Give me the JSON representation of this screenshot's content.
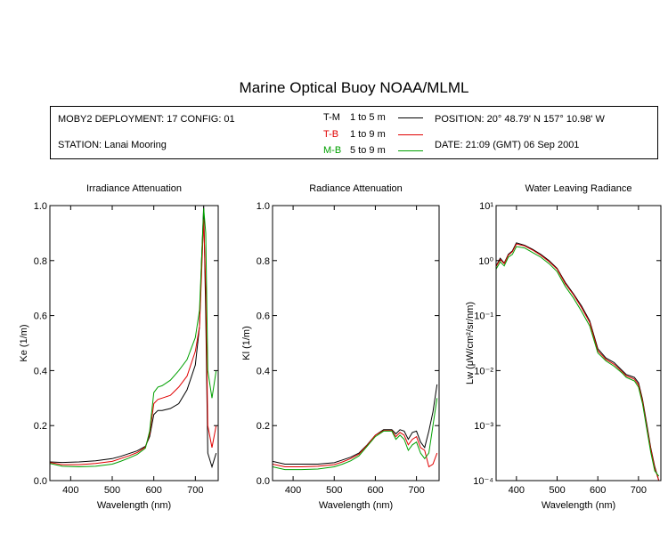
{
  "title": "Marine Optical Buoy NOAA/MLML",
  "info": {
    "deployment": "MOBY2 DEPLOYMENT: 17 CONFIG: 01",
    "station": "STATION: Lanai Mooring",
    "position": "POSITION: 20° 48.79' N   157° 10.98' W",
    "date": "DATE: 21:09 (GMT) 06 Sep 2001",
    "legend": [
      {
        "code": "T-M",
        "range": "1 to 5  m",
        "color": "#000000"
      },
      {
        "code": "T-B",
        "range": "1 to 9  m",
        "color": "#e00000"
      },
      {
        "code": "M-B",
        "range": "5 to 9  m",
        "color": "#00a000"
      }
    ]
  },
  "colors": {
    "tm": "#000000",
    "tb": "#e00000",
    "mb": "#00a000"
  },
  "chart_data": [
    {
      "type": "line",
      "title": "Irradiance Attenuation",
      "xlabel": "Wavelength (nm)",
      "ylabel": "Ke  (1/m)",
      "xlim": [
        350,
        755
      ],
      "ylim": [
        0,
        1
      ],
      "xticks": [
        400,
        500,
        600,
        700
      ],
      "yticks": [
        0.0,
        0.2,
        0.4,
        0.6,
        0.8,
        1.0
      ],
      "ytick_labels": [
        "0.0",
        "0.2",
        "0.4",
        "0.6",
        "0.8",
        "1.0"
      ],
      "series": [
        {
          "name": "T-M",
          "color": "#000000",
          "x": [
            350,
            380,
            420,
            460,
            500,
            520,
            540,
            560,
            580,
            590,
            600,
            610,
            620,
            640,
            660,
            680,
            700,
            710,
            715,
            720,
            725,
            730,
            740,
            750
          ],
          "y": [
            0.068,
            0.066,
            0.068,
            0.072,
            0.08,
            0.088,
            0.098,
            0.108,
            0.125,
            0.16,
            0.24,
            0.255,
            0.255,
            0.262,
            0.28,
            0.33,
            0.42,
            0.56,
            0.8,
            1.0,
            0.6,
            0.1,
            0.05,
            0.1
          ]
        },
        {
          "name": "T-B",
          "color": "#e00000",
          "x": [
            350,
            380,
            420,
            460,
            500,
            520,
            540,
            560,
            580,
            590,
            600,
            610,
            620,
            640,
            660,
            680,
            700,
            710,
            715,
            720,
            725,
            730,
            740,
            750
          ],
          "y": [
            0.066,
            0.058,
            0.058,
            0.062,
            0.07,
            0.08,
            0.09,
            0.102,
            0.122,
            0.17,
            0.28,
            0.295,
            0.3,
            0.31,
            0.34,
            0.38,
            0.47,
            0.56,
            0.75,
            0.95,
            0.7,
            0.2,
            0.12,
            0.2
          ]
        },
        {
          "name": "M-B",
          "color": "#00a000",
          "x": [
            350,
            380,
            420,
            460,
            500,
            520,
            540,
            560,
            580,
            590,
            600,
            610,
            620,
            640,
            660,
            680,
            700,
            710,
            715,
            720,
            725,
            730,
            740,
            750
          ],
          "y": [
            0.062,
            0.052,
            0.05,
            0.052,
            0.06,
            0.07,
            0.082,
            0.095,
            0.118,
            0.18,
            0.32,
            0.34,
            0.345,
            0.365,
            0.4,
            0.44,
            0.52,
            0.62,
            0.8,
            0.99,
            0.9,
            0.4,
            0.3,
            0.4
          ]
        }
      ]
    },
    {
      "type": "line",
      "title": "Radiance Attenuation",
      "xlabel": "Wavelength (nm)",
      "ylabel": "Kl  (1/m)",
      "xlim": [
        350,
        755
      ],
      "ylim": [
        0,
        1
      ],
      "xticks": [
        400,
        500,
        600,
        700
      ],
      "yticks": [
        0.0,
        0.2,
        0.4,
        0.6,
        0.8,
        1.0
      ],
      "ytick_labels": [
        "0.0",
        "0.2",
        "0.4",
        "0.6",
        "0.8",
        "1.0"
      ],
      "series": [
        {
          "name": "T-M",
          "color": "#000000",
          "x": [
            350,
            380,
            420,
            460,
            500,
            520,
            540,
            560,
            580,
            600,
            620,
            640,
            650,
            660,
            670,
            680,
            690,
            700,
            710,
            720,
            730,
            740,
            750
          ],
          "y": [
            0.07,
            0.06,
            0.06,
            0.06,
            0.065,
            0.075,
            0.085,
            0.1,
            0.13,
            0.165,
            0.185,
            0.185,
            0.17,
            0.185,
            0.18,
            0.15,
            0.175,
            0.18,
            0.14,
            0.12,
            0.18,
            0.25,
            0.35
          ]
        },
        {
          "name": "T-B",
          "color": "#e00000",
          "x": [
            350,
            380,
            420,
            460,
            500,
            520,
            540,
            560,
            580,
            600,
            620,
            640,
            650,
            660,
            670,
            680,
            690,
            700,
            710,
            720,
            730,
            740,
            750
          ],
          "y": [
            0.06,
            0.05,
            0.05,
            0.052,
            0.058,
            0.068,
            0.08,
            0.096,
            0.128,
            0.165,
            0.182,
            0.182,
            0.16,
            0.175,
            0.165,
            0.13,
            0.15,
            0.16,
            0.12,
            0.11,
            0.05,
            0.06,
            0.1
          ]
        },
        {
          "name": "M-B",
          "color": "#00a000",
          "x": [
            350,
            380,
            420,
            460,
            500,
            520,
            540,
            560,
            580,
            600,
            620,
            640,
            650,
            660,
            670,
            680,
            690,
            700,
            710,
            720,
            730,
            740,
            750
          ],
          "y": [
            0.05,
            0.04,
            0.04,
            0.042,
            0.05,
            0.06,
            0.072,
            0.09,
            0.125,
            0.16,
            0.18,
            0.18,
            0.15,
            0.165,
            0.15,
            0.11,
            0.13,
            0.14,
            0.1,
            0.08,
            0.1,
            0.2,
            0.3
          ]
        }
      ]
    },
    {
      "type": "line",
      "title": "Water Leaving Radiance",
      "xlabel": "Wavelength (nm)",
      "ylabel": "Lw  (μW/cm²/sr/nm)",
      "xlim": [
        350,
        755
      ],
      "ylim": [
        0.0001,
        10
      ],
      "yscale": "log",
      "xticks": [
        400,
        500,
        600,
        700
      ],
      "yticks": [
        0.0001,
        0.001,
        0.01,
        0.1,
        1,
        10
      ],
      "ytick_labels": [
        "10⁻⁴",
        "10⁻³",
        "10⁻²",
        "10⁻¹",
        "10⁰",
        "10¹"
      ],
      "series": [
        {
          "name": "T-M",
          "color": "#000000",
          "x": [
            350,
            360,
            370,
            380,
            390,
            400,
            420,
            440,
            460,
            480,
            500,
            520,
            540,
            560,
            580,
            600,
            620,
            640,
            660,
            670,
            680,
            690,
            700,
            710,
            720,
            730,
            740,
            750
          ],
          "y": [
            0.8,
            1.1,
            0.9,
            1.3,
            1.5,
            2.1,
            1.9,
            1.6,
            1.3,
            1.0,
            0.72,
            0.4,
            0.25,
            0.15,
            0.08,
            0.025,
            0.017,
            0.014,
            0.01,
            0.0085,
            0.008,
            0.0075,
            0.006,
            0.003,
            0.0011,
            0.0004,
            0.00018,
            0.0001
          ]
        },
        {
          "name": "T-B",
          "color": "#e00000",
          "x": [
            350,
            360,
            370,
            380,
            390,
            400,
            420,
            440,
            460,
            480,
            500,
            520,
            540,
            560,
            580,
            600,
            620,
            640,
            660,
            670,
            680,
            690,
            700,
            710,
            720,
            730,
            740,
            750
          ],
          "y": [
            0.78,
            1.05,
            0.88,
            1.25,
            1.45,
            2.0,
            1.85,
            1.55,
            1.25,
            0.96,
            0.7,
            0.38,
            0.24,
            0.14,
            0.075,
            0.023,
            0.016,
            0.013,
            0.0095,
            0.008,
            0.0075,
            0.007,
            0.0055,
            0.0028,
            0.001,
            0.00038,
            0.00017,
            0.0001
          ]
        },
        {
          "name": "M-B",
          "color": "#00a000",
          "x": [
            350,
            360,
            370,
            380,
            390,
            400,
            420,
            440,
            460,
            480,
            500,
            520,
            540,
            560,
            580,
            600,
            620,
            640,
            660,
            670,
            680,
            690,
            700,
            710,
            720,
            730,
            740,
            750
          ],
          "y": [
            0.7,
            0.95,
            0.8,
            1.15,
            1.3,
            1.8,
            1.7,
            1.4,
            1.15,
            0.88,
            0.63,
            0.34,
            0.21,
            0.12,
            0.065,
            0.021,
            0.015,
            0.012,
            0.009,
            0.0075,
            0.007,
            0.0065,
            0.005,
            0.0025,
            0.0009,
            0.00033,
            0.00015,
            0.00012
          ]
        }
      ]
    }
  ]
}
